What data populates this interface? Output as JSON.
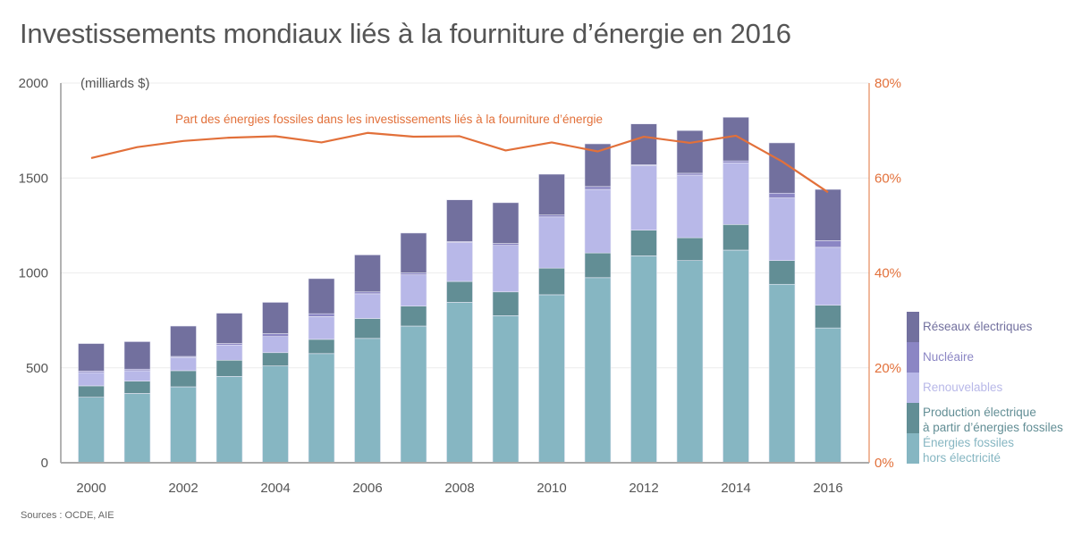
{
  "title": "Investissements mondiaux liés à la fourniture d’énergie en 2016",
  "source": "Sources : OCDE, AIE",
  "chart_data": {
    "type": "bar",
    "stacked": true,
    "title": "Investissements mondiaux liés à la fourniture d’énergie en 2016",
    "ylabel": "(milliards $)",
    "ylim": [
      0,
      2000
    ],
    "yticks": [
      0,
      500,
      1000,
      1500,
      2000
    ],
    "y2lim": [
      0,
      80
    ],
    "y2ticks": [
      "0%",
      "20%",
      "40%",
      "60%",
      "80%"
    ],
    "y2tick_values": [
      0,
      20,
      40,
      60,
      80
    ],
    "grid": true,
    "categories": [
      2000,
      2001,
      2002,
      2003,
      2004,
      2005,
      2006,
      2007,
      2008,
      2009,
      2010,
      2011,
      2012,
      2013,
      2014,
      2015,
      2016
    ],
    "xtick_labels": [
      "2000",
      "2002",
      "2004",
      "2006",
      "2008",
      "2010",
      "2012",
      "2014",
      "2016"
    ],
    "series": [
      {
        "name": "Énergies fossiles hors électricité",
        "color": "#86b6c2",
        "values": [
          345,
          365,
          400,
          455,
          510,
          575,
          655,
          720,
          845,
          775,
          885,
          975,
          1090,
          1065,
          1120,
          940,
          710
        ]
      },
      {
        "name": "Production électrique à partir d’énergies fossiles",
        "color": "#628e95",
        "values": [
          60,
          65,
          85,
          85,
          70,
          75,
          105,
          105,
          110,
          125,
          140,
          130,
          135,
          120,
          135,
          125,
          120
        ]
      },
      {
        "name": "Renouvelables",
        "color": "#b8b8e8",
        "values": [
          70,
          55,
          70,
          80,
          85,
          120,
          130,
          165,
          205,
          245,
          270,
          335,
          340,
          330,
          325,
          330,
          305
        ]
      },
      {
        "name": "Nucléaire",
        "color": "#8b86c4",
        "values": [
          8,
          8,
          5,
          8,
          15,
          15,
          10,
          10,
          5,
          10,
          10,
          15,
          5,
          10,
          10,
          25,
          35
        ]
      },
      {
        "name": "Réseaux électriques",
        "color": "#72709e",
        "values": [
          145,
          145,
          160,
          160,
          165,
          185,
          195,
          210,
          220,
          215,
          215,
          225,
          215,
          225,
          230,
          265,
          270
        ]
      }
    ],
    "line_series": {
      "name": "Part des énergies fossiles dans les investissements liés à la fourniture d’énergie",
      "color": "#e2703a",
      "axis": "right",
      "values": [
        64.2,
        66.5,
        67.8,
        68.5,
        68.8,
        67.5,
        69.5,
        68.7,
        68.8,
        65.8,
        67.5,
        65.6,
        68.7,
        67.4,
        68.9,
        63.5,
        57.0
      ]
    },
    "legend": "right",
    "legend_order": [
      "Réseaux électriques",
      "Nucléaire",
      "Renouvelables",
      "Production électrique\nà partir d’énergies fossiles",
      "Énergies fossiles\nhors électricité"
    ]
  }
}
